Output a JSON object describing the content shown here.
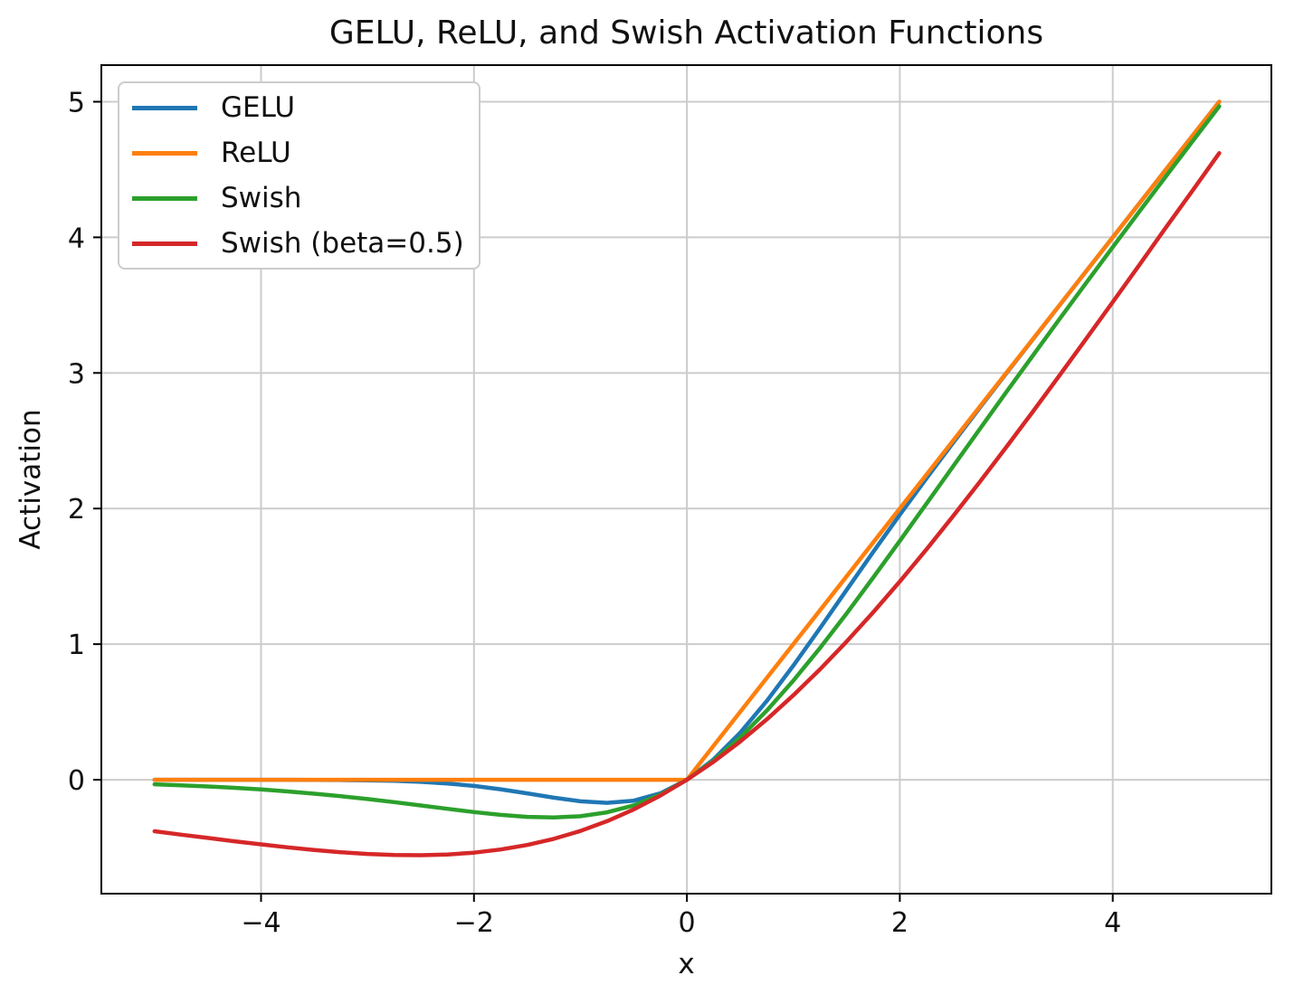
{
  "chart_data": {
    "type": "line",
    "title": "GELU, ReLU, and Swish Activation Functions",
    "xlabel": "x",
    "ylabel": "Activation",
    "grid": true,
    "legend_position": "upper left",
    "xlim": [
      -5.5,
      5.49
    ],
    "ylim": [
      -0.84,
      5.27
    ],
    "xticks": [
      -4,
      -2,
      0,
      2,
      4
    ],
    "xtick_labels": [
      "−4",
      "−2",
      "0",
      "2",
      "4"
    ],
    "yticks": [
      0,
      1,
      2,
      3,
      4,
      5
    ],
    "ytick_labels": [
      "0",
      "1",
      "2",
      "3",
      "4",
      "5"
    ],
    "grid_color": "#cccccc",
    "spine_color": "#000000",
    "text_color": "#111111",
    "x": [
      -5,
      -4.75,
      -4.5,
      -4.25,
      -4,
      -3.75,
      -3.5,
      -3.25,
      -3,
      -2.75,
      -2.5,
      -2.25,
      -2,
      -1.75,
      -1.5,
      -1.25,
      -1,
      -0.75,
      -0.5,
      -0.25,
      0,
      0.25,
      0.5,
      0.75,
      1,
      1.25,
      1.5,
      1.75,
      2,
      2.25,
      2.5,
      2.75,
      3,
      3.25,
      3.5,
      3.75,
      4,
      4.25,
      4.5,
      4.75,
      5
    ],
    "series": [
      {
        "name": "GELU",
        "color": "#1f77b4",
        "values": [
          0.0,
          0.0,
          0.0,
          0.0,
          -0.0001,
          -0.0003,
          -0.0008,
          -0.0019,
          -0.004,
          -0.0082,
          -0.0155,
          -0.0275,
          -0.0455,
          -0.0702,
          -0.1002,
          -0.132,
          -0.1587,
          -0.17,
          -0.1543,
          -0.1003,
          0.0,
          0.1497,
          0.3457,
          0.58,
          0.8413,
          1.118,
          1.3998,
          1.6799,
          1.9545,
          2.2225,
          2.4845,
          2.7418,
          2.996,
          3.2481,
          3.4992,
          3.7497,
          3.9999,
          4.25,
          4.5,
          4.75,
          5.0
        ]
      },
      {
        "name": "ReLU",
        "color": "#ff7f0e",
        "values": [
          0.0,
          0.0,
          0.0,
          0.0,
          0.0,
          0.0,
          0.0,
          0.0,
          0.0,
          0.0,
          0.0,
          0.0,
          0.0,
          0.0,
          0.0,
          0.0,
          0.0,
          0.0,
          0.0,
          0.0,
          0.0,
          0.25,
          0.5,
          0.75,
          1.0,
          1.25,
          1.5,
          1.75,
          2.0,
          2.25,
          2.5,
          2.75,
          3.0,
          3.25,
          3.5,
          3.75,
          4.0,
          4.25,
          4.5,
          4.75,
          5.0
        ]
      },
      {
        "name": "Swish",
        "color": "#2ca02c",
        "values": [
          -0.0335,
          -0.0408,
          -0.0495,
          -0.0598,
          -0.0719,
          -0.0861,
          -0.1027,
          -0.1213,
          -0.1423,
          -0.1652,
          -0.1897,
          -0.2144,
          -0.2384,
          -0.259,
          -0.2736,
          -0.2784,
          -0.2689,
          -0.2406,
          -0.1888,
          -0.1095,
          0.0,
          0.1406,
          0.3112,
          0.5094,
          0.7311,
          0.9716,
          1.2263,
          1.491,
          1.7616,
          2.0356,
          2.3103,
          2.5847,
          2.8577,
          3.1288,
          3.3974,
          3.6638,
          3.9281,
          4.1903,
          4.4504,
          4.7092,
          4.9665
        ]
      },
      {
        "name": "Swish (beta=0.5)",
        "color": "#d62728",
        "values": [
          -0.3795,
          -0.4052,
          -0.4289,
          -0.4535,
          -0.4768,
          -0.4988,
          -0.518,
          -0.5347,
          -0.5473,
          -0.5549,
          -0.5568,
          -0.5515,
          -0.5379,
          -0.5148,
          -0.4812,
          -0.4358,
          -0.3775,
          -0.3055,
          -0.2189,
          -0.1172,
          0.0,
          0.1328,
          0.2811,
          0.4445,
          0.6225,
          0.8142,
          1.0188,
          1.2352,
          1.4622,
          1.6985,
          1.9433,
          2.1951,
          2.4527,
          2.7154,
          2.9819,
          3.2513,
          3.5232,
          3.7966,
          4.0733,
          4.3448,
          4.6207
        ]
      }
    ]
  }
}
